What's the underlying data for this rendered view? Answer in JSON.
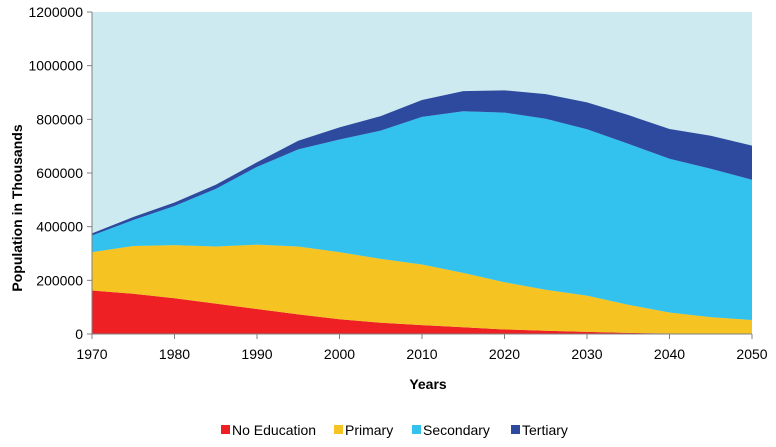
{
  "chart_data": {
    "type": "area",
    "stacked": true,
    "title": "",
    "xlabel": "Years",
    "ylabel": "Population in Thousands",
    "xlim": [
      1970,
      2050
    ],
    "ylim": [
      0,
      1200000
    ],
    "x_ticks": [
      "1970",
      "1980",
      "1990",
      "2000",
      "2010",
      "2020",
      "2030",
      "2040",
      "2050"
    ],
    "y_ticks": [
      "0",
      "200000",
      "400000",
      "600000",
      "800000",
      "1000000",
      "1200000"
    ],
    "x": [
      1970,
      1975,
      1980,
      1985,
      1990,
      1995,
      2000,
      2005,
      2010,
      2015,
      2020,
      2025,
      2030,
      2035,
      2040,
      2045,
      2050
    ],
    "plot_background": "#CDEAF0",
    "legend_position": "bottom",
    "series": [
      {
        "name": "No Education",
        "color": "#EE2024",
        "values": [
          162000,
          150000,
          133000,
          113000,
          93000,
          73000,
          55000,
          42000,
          33000,
          25000,
          17000,
          12000,
          8000,
          4000,
          2000,
          1000,
          500
        ]
      },
      {
        "name": "Primary",
        "color": "#F5C422",
        "values": [
          143000,
          178000,
          198000,
          213000,
          240000,
          253000,
          250000,
          238000,
          226000,
          203000,
          176000,
          153000,
          135000,
          105000,
          78000,
          62000,
          51500
        ]
      },
      {
        "name": "Secondary",
        "color": "#33C1EE",
        "values": [
          62000,
          97000,
          146000,
          215000,
          290000,
          362000,
          420000,
          478000,
          550000,
          602000,
          632000,
          637000,
          620000,
          600000,
          573000,
          553000,
          523000
        ]
      },
      {
        "name": "Tertiary",
        "color": "#2E4A9E",
        "values": [
          8000,
          11000,
          13000,
          15000,
          17000,
          32000,
          45000,
          54000,
          63000,
          75000,
          83000,
          92000,
          100000,
          107000,
          111000,
          123000,
          127000
        ]
      }
    ]
  }
}
